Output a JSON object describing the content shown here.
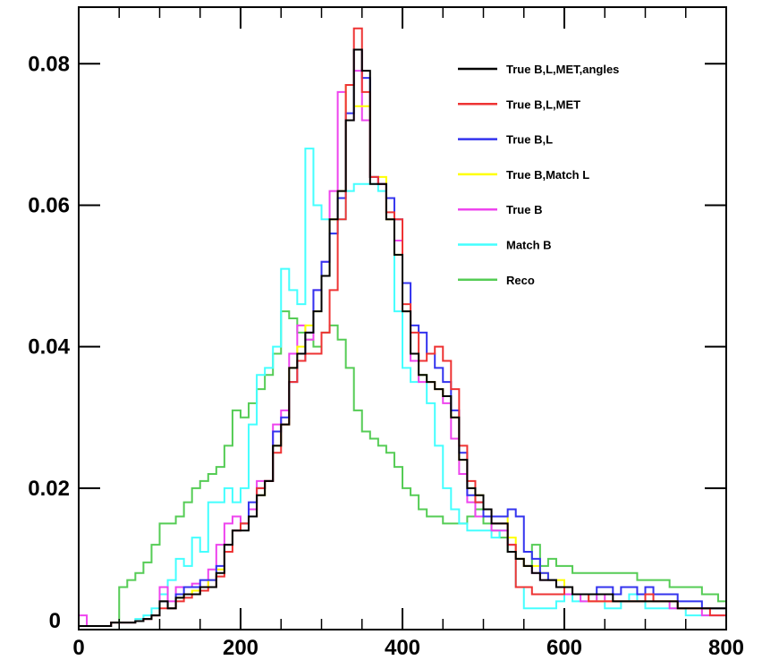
{
  "chart_data": {
    "type": "line",
    "step": true,
    "xlim": [
      0,
      800
    ],
    "ylim": [
      0,
      0.088
    ],
    "grid": false,
    "legend_position": "top-right",
    "bin_width": 10,
    "x": [
      0,
      10,
      20,
      30,
      40,
      50,
      60,
      70,
      80,
      90,
      100,
      110,
      120,
      130,
      140,
      150,
      160,
      170,
      180,
      190,
      200,
      210,
      220,
      230,
      240,
      250,
      260,
      270,
      280,
      290,
      300,
      310,
      320,
      330,
      340,
      350,
      360,
      370,
      380,
      390,
      400,
      410,
      420,
      430,
      440,
      450,
      460,
      470,
      480,
      490,
      500,
      510,
      520,
      530,
      540,
      550,
      560,
      570,
      580,
      590,
      600,
      610,
      620,
      630,
      640,
      650,
      660,
      670,
      680,
      690,
      700,
      710,
      720,
      730,
      740,
      750,
      760,
      770,
      780,
      790
    ],
    "x_ticks": [
      "0",
      "200",
      "400",
      "600",
      "800"
    ],
    "y_ticks": [
      {
        "value": 0,
        "label": "0"
      },
      {
        "value": 0.02,
        "label": "0.02"
      },
      {
        "value": 0.04,
        "label": "0.04"
      },
      {
        "value": 0.06,
        "label": "0.06"
      },
      {
        "value": 0.08,
        "label": "0.08"
      }
    ],
    "series": [
      {
        "name": "True B,L,MET,angles",
        "color": "#000000",
        "values": [
          0.0005,
          0.0005,
          0.0005,
          0.0005,
          0.001,
          0.001,
          0.001,
          0.0012,
          0.0015,
          0.002,
          0.004,
          0.003,
          0.0045,
          0.005,
          0.005,
          0.006,
          0.006,
          0.008,
          0.012,
          0.014,
          0.014,
          0.016,
          0.019,
          0.021,
          0.026,
          0.029,
          0.037,
          0.039,
          0.042,
          0.045,
          0.05,
          0.058,
          0.062,
          0.072,
          0.082,
          0.079,
          0.063,
          0.063,
          0.058,
          0.053,
          0.045,
          0.039,
          0.036,
          0.035,
          0.034,
          0.033,
          0.03,
          0.024,
          0.02,
          0.019,
          0.017,
          0.015,
          0.015,
          0.011,
          0.01,
          0.009,
          0.008,
          0.007,
          0.007,
          0.006,
          0.006,
          0.005,
          0.005,
          0.005,
          0.005,
          0.005,
          0.004,
          0.004,
          0.004,
          0.004,
          0.004,
          0.004,
          0.004,
          0.004,
          0.003,
          0.003,
          0.003,
          0.003,
          0.003,
          0.003
        ]
      },
      {
        "name": "True B,L,MET",
        "color": "#ee3333",
        "values": [
          0.0005,
          0.0005,
          0.0005,
          0.0005,
          0.001,
          0.001,
          0.001,
          0.0012,
          0.0015,
          0.002,
          0.003,
          0.003,
          0.004,
          0.0045,
          0.005,
          0.0055,
          0.006,
          0.0075,
          0.011,
          0.014,
          0.015,
          0.016,
          0.02,
          0.021,
          0.025,
          0.029,
          0.035,
          0.038,
          0.039,
          0.039,
          0.042,
          0.048,
          0.058,
          0.077,
          0.085,
          0.076,
          0.064,
          0.063,
          0.059,
          0.058,
          0.046,
          0.042,
          0.038,
          0.039,
          0.04,
          0.038,
          0.034,
          0.026,
          0.021,
          0.018,
          0.017,
          0.015,
          0.015,
          0.012,
          0.006,
          0.006,
          0.005,
          0.005,
          0.005,
          0.005,
          0.006,
          0.005,
          0.005,
          0.004,
          0.004,
          0.004,
          0.004,
          0.004,
          0.004,
          0.004,
          0.005,
          0.004,
          0.004,
          0.004,
          0.003,
          0.003,
          0.003,
          0.003,
          0.002,
          0.002
        ]
      },
      {
        "name": "True B,L",
        "color": "#3333ee",
        "values": [
          0.0005,
          0.0005,
          0.0005,
          0.0005,
          0.001,
          0.001,
          0.001,
          0.0012,
          0.0015,
          0.002,
          0.004,
          0.003,
          0.005,
          0.006,
          0.006,
          0.007,
          0.007,
          0.009,
          0.012,
          0.014,
          0.015,
          0.018,
          0.02,
          0.021,
          0.028,
          0.03,
          0.035,
          0.038,
          0.042,
          0.048,
          0.052,
          0.056,
          0.061,
          0.073,
          0.082,
          0.078,
          0.064,
          0.063,
          0.061,
          0.058,
          0.049,
          0.043,
          0.042,
          0.039,
          0.037,
          0.035,
          0.031,
          0.025,
          0.019,
          0.018,
          0.016,
          0.016,
          0.016,
          0.017,
          0.016,
          0.011,
          0.01,
          0.008,
          0.007,
          0.006,
          0.006,
          0.005,
          0.005,
          0.005,
          0.006,
          0.006,
          0.005,
          0.006,
          0.006,
          0.005,
          0.006,
          0.005,
          0.005,
          0.005,
          0.004,
          0.004,
          0.004,
          0.003,
          0.003,
          0.003
        ]
      },
      {
        "name": "True B,Match L",
        "color": "#ffff00",
        "values": [
          0.0005,
          0.0005,
          0.0005,
          0.0005,
          0.001,
          0.001,
          0.001,
          0.0012,
          0.0015,
          0.002,
          0.004,
          0.003,
          0.0045,
          0.005,
          0.0055,
          0.006,
          0.007,
          0.0085,
          0.012,
          0.014,
          0.015,
          0.016,
          0.019,
          0.021,
          0.026,
          0.029,
          0.037,
          0.04,
          0.043,
          0.045,
          0.05,
          0.058,
          0.062,
          0.077,
          0.074,
          0.074,
          0.064,
          0.064,
          0.058,
          0.053,
          0.045,
          0.039,
          0.036,
          0.035,
          0.034,
          0.033,
          0.03,
          0.024,
          0.02,
          0.019,
          0.016,
          0.016,
          0.016,
          0.013,
          0.01,
          0.009,
          0.009,
          0.008,
          0.007,
          0.007,
          0.006,
          0.005,
          0.005,
          0.004,
          0.004,
          0.004,
          0.004,
          0.004,
          0.004,
          0.004,
          0.004,
          0.004,
          0.004,
          0.004,
          0.003,
          0.003,
          0.003,
          0.003,
          0.003,
          0.003
        ]
      },
      {
        "name": "True B",
        "color": "#ee44ee",
        "values": [
          0.002,
          0.0005,
          0.0005,
          0.0005,
          0.001,
          0.001,
          0.001,
          0.0012,
          0.0015,
          0.002,
          0.006,
          0.004,
          0.006,
          0.006,
          0.0065,
          0.006,
          0.0085,
          0.012,
          0.015,
          0.016,
          0.015,
          0.017,
          0.021,
          0.021,
          0.029,
          0.031,
          0.039,
          0.043,
          0.041,
          0.048,
          0.052,
          0.062,
          0.076,
          0.072,
          0.079,
          0.072,
          0.064,
          0.063,
          0.058,
          0.055,
          0.045,
          0.038,
          0.035,
          0.035,
          0.034,
          0.032,
          0.027,
          0.022,
          0.018,
          0.016,
          0.016,
          0.014,
          0.014,
          0.012,
          0.01,
          0.009,
          0.008,
          0.007,
          0.007,
          0.006,
          0.005,
          0.005,
          0.004,
          0.004,
          0.005,
          0.004,
          0.004,
          0.004,
          0.004,
          0.004,
          0.004,
          0.004,
          0.004,
          0.003,
          0.003,
          0.003,
          0.003,
          0.002,
          0.002,
          0.002
        ]
      },
      {
        "name": "Match B",
        "color": "#44ffff",
        "values": [
          0.0005,
          0.0005,
          0.0005,
          0.0005,
          0.001,
          0.001,
          0.001,
          0.0015,
          0.002,
          0.003,
          0.005,
          0.007,
          0.01,
          0.009,
          0.013,
          0.011,
          0.018,
          0.018,
          0.02,
          0.018,
          0.02,
          0.029,
          0.036,
          0.037,
          0.04,
          0.051,
          0.048,
          0.046,
          0.068,
          0.06,
          0.058,
          0.056,
          0.058,
          0.062,
          0.063,
          0.063,
          0.063,
          0.062,
          0.058,
          0.045,
          0.037,
          0.035,
          0.036,
          0.032,
          0.026,
          0.02,
          0.017,
          0.015,
          0.014,
          0.014,
          0.014,
          0.013,
          0.014,
          0.012,
          0.006,
          0.003,
          0.003,
          0.003,
          0.003,
          0.004,
          0.005,
          0.004,
          0.004,
          0.005,
          0.004,
          0.003,
          0.003,
          0.004,
          0.005,
          0.004,
          0.003,
          0.003,
          0.003,
          0.003,
          0.003,
          0.002,
          0.002,
          0.002,
          0.002,
          0.002
        ]
      },
      {
        "name": "Reco",
        "color": "#55cc55",
        "values": [
          0.0005,
          0.0005,
          0.0005,
          0.0005,
          0.001,
          0.006,
          0.007,
          0.008,
          0.0095,
          0.012,
          0.015,
          0.015,
          0.016,
          0.018,
          0.02,
          0.021,
          0.022,
          0.023,
          0.026,
          0.031,
          0.03,
          0.032,
          0.034,
          0.036,
          0.039,
          0.045,
          0.044,
          0.042,
          0.041,
          0.04,
          0.042,
          0.043,
          0.041,
          0.037,
          0.031,
          0.028,
          0.027,
          0.026,
          0.025,
          0.023,
          0.02,
          0.019,
          0.017,
          0.016,
          0.016,
          0.015,
          0.015,
          0.015,
          0.016,
          0.017,
          0.015,
          0.014,
          0.013,
          0.011,
          0.01,
          0.009,
          0.012,
          0.009,
          0.01,
          0.009,
          0.009,
          0.008,
          0.008,
          0.008,
          0.008,
          0.008,
          0.008,
          0.008,
          0.008,
          0.007,
          0.007,
          0.007,
          0.007,
          0.006,
          0.006,
          0.006,
          0.006,
          0.005,
          0.005,
          0.004
        ]
      }
    ]
  }
}
